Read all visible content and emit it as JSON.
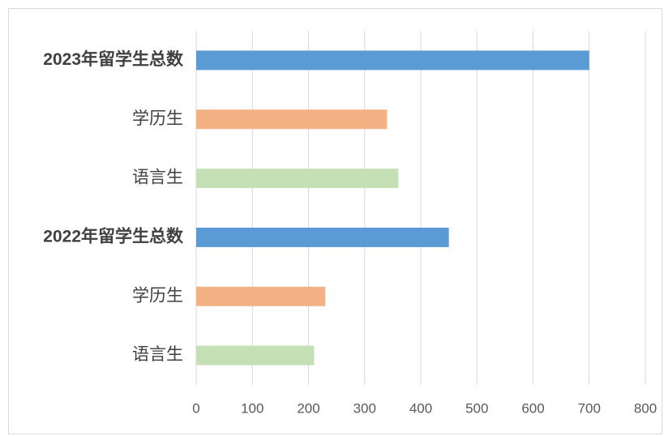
{
  "chart_data": {
    "type": "bar",
    "orientation": "horizontal",
    "categories": [
      "2023年留学生总数",
      "学历生",
      "语言生",
      "2022年留学生总数",
      "学历生",
      "语言生"
    ],
    "values": [
      700,
      340,
      360,
      450,
      230,
      210
    ],
    "colors": [
      "#5b9bd5",
      "#f4b183",
      "#c5e0b4",
      "#5b9bd5",
      "#f4b183",
      "#c5e0b4"
    ],
    "xlim": [
      0,
      800
    ],
    "xticks": [
      0,
      100,
      200,
      300,
      400,
      500,
      600,
      700,
      800
    ],
    "grid": true
  }
}
